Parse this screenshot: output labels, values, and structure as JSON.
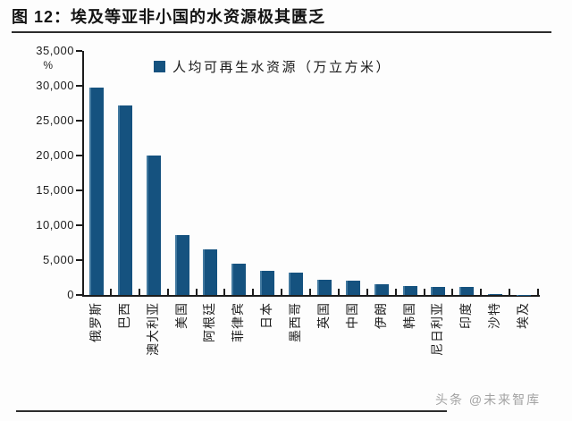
{
  "figure": {
    "title": "图 12：埃及等亚非小国的水资源极其匮乏",
    "watermark": "头条 @未来智库"
  },
  "chart_data": {
    "type": "bar",
    "title": "图 12：埃及等亚非小国的水资源极其匮乏",
    "legend": [
      {
        "label": "人均可再生水资源（万立方米）",
        "color": "#15527f"
      }
    ],
    "legend_position": "top-center",
    "categories": [
      "俄罗斯",
      "巴西",
      "澳大利亚",
      "美国",
      "阿根廷",
      "菲律宾",
      "日本",
      "墨西哥",
      "英国",
      "中国",
      "伊朗",
      "韩国",
      "尼日利亚",
      "印度",
      "沙特",
      "埃及"
    ],
    "values": [
      29800,
      27200,
      20000,
      8600,
      6500,
      4500,
      3400,
      3200,
      2200,
      2000,
      1600,
      1300,
      1200,
      1100,
      80,
      20
    ],
    "xlabel": "",
    "ylabel": "%",
    "ylim": [
      0,
      35000
    ],
    "yticks": [
      0,
      5000,
      10000,
      15000,
      20000,
      25000,
      30000,
      35000
    ],
    "ytick_labels": [
      "0",
      "5,000",
      "10,000",
      "15,000",
      "20,000",
      "25,000",
      "30,000",
      "35,000"
    ],
    "grid": false,
    "bar_color": "#15527f",
    "axis_color": "#1c1c1c",
    "x_tick_style": "inside",
    "y_tick_style": "outside"
  }
}
